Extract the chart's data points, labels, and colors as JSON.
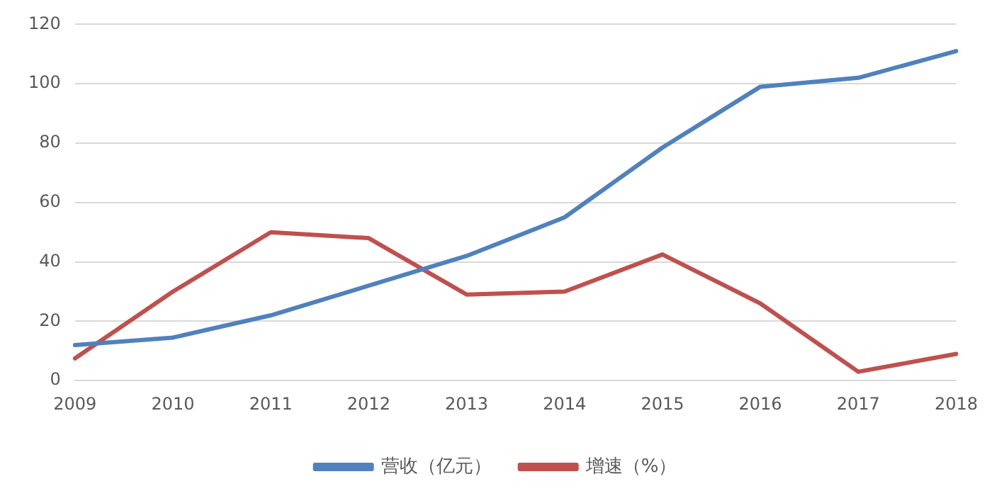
{
  "chart_data": {
    "type": "line",
    "categories": [
      "2009",
      "2010",
      "2011",
      "2012",
      "2013",
      "2014",
      "2015",
      "2016",
      "2017",
      "2018"
    ],
    "series": [
      {
        "name": "营收（亿元）",
        "color": "#4f81bd",
        "values": [
          12,
          14.5,
          22,
          32,
          42,
          55,
          78.5,
          99,
          102,
          111
        ]
      },
      {
        "name": "增速（%）",
        "color": "#c0504d",
        "values": [
          7.5,
          30,
          50,
          48,
          29,
          30,
          42.5,
          26,
          3,
          9
        ]
      }
    ],
    "ylim": [
      0,
      120
    ],
    "yticks": [
      0,
      20,
      40,
      60,
      80,
      100,
      120
    ],
    "grid": "y",
    "legend": "bottom",
    "marker": "none",
    "line_style": "solid"
  }
}
